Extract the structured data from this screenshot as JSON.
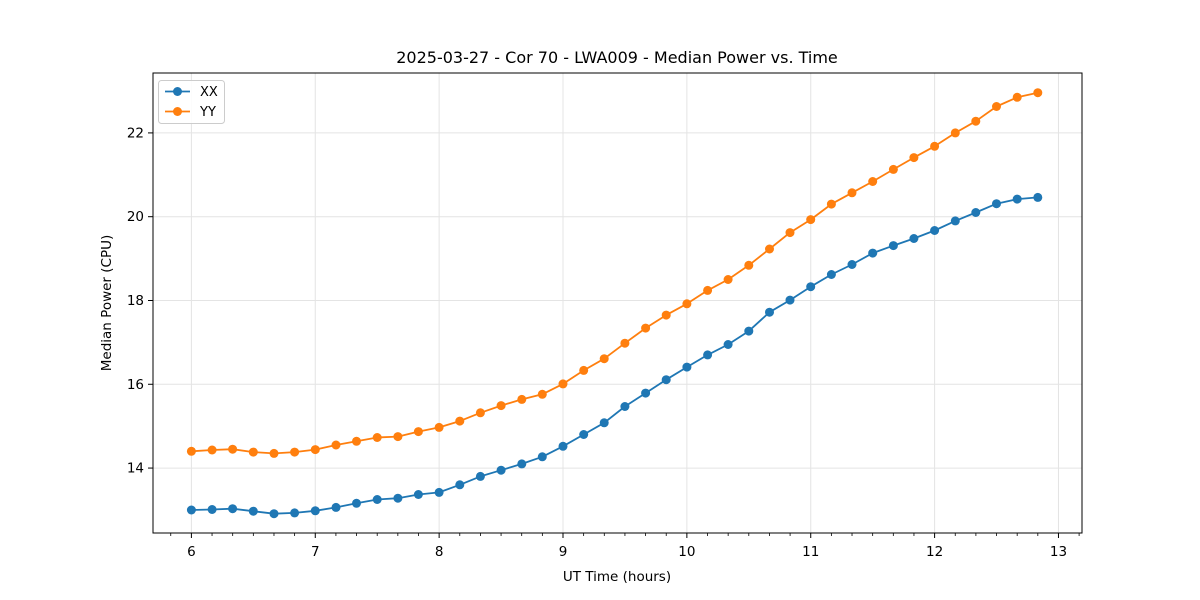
{
  "chart_data": {
    "type": "line",
    "title": "2025-03-27 - Cor 70 - LWA009 - Median Power vs. Time",
    "xlabel": "UT Time (hours)",
    "ylabel": "Median Power (CPU)",
    "xlim": [
      5.69,
      13.19
    ],
    "ylim": [
      12.45,
      23.43
    ],
    "xticks": [
      6,
      7,
      8,
      9,
      10,
      11,
      12,
      13
    ],
    "yticks": [
      14,
      16,
      18,
      20,
      22
    ],
    "minor_tick_step_x": 0.1667,
    "grid": true,
    "background": "#ffffff",
    "grid_color": "#e4e4e4",
    "legend_position": "upper-left",
    "legend_border_color": "#cccccc",
    "x": [
      6.0,
      6.167,
      6.333,
      6.5,
      6.667,
      6.833,
      7.0,
      7.167,
      7.333,
      7.5,
      7.667,
      7.833,
      8.0,
      8.167,
      8.333,
      8.5,
      8.667,
      8.833,
      9.0,
      9.167,
      9.333,
      9.5,
      9.667,
      9.833,
      10.0,
      10.167,
      10.333,
      10.5,
      10.667,
      10.833,
      11.0,
      11.167,
      11.333,
      11.5,
      11.667,
      11.833,
      12.0,
      12.167,
      12.333,
      12.5,
      12.667,
      12.833
    ],
    "series": [
      {
        "name": "XX",
        "color": "#1f77b4",
        "marker": "circle",
        "values": [
          13.0,
          13.01,
          13.03,
          12.97,
          12.91,
          12.93,
          12.98,
          13.06,
          13.16,
          13.25,
          13.28,
          13.37,
          13.42,
          13.6,
          13.8,
          13.95,
          14.1,
          14.27,
          14.52,
          14.8,
          15.08,
          15.47,
          15.79,
          16.11,
          16.41,
          16.7,
          16.95,
          17.27,
          17.72,
          18.01,
          18.33,
          18.62,
          18.86,
          19.13,
          19.31,
          19.48,
          19.67,
          19.9,
          20.1,
          20.31,
          20.42,
          20.46
        ]
      },
      {
        "name": "YY",
        "color": "#ff7f0e",
        "marker": "circle",
        "values": [
          14.4,
          14.43,
          14.45,
          14.38,
          14.35,
          14.38,
          14.44,
          14.55,
          14.64,
          14.73,
          14.75,
          14.87,
          14.97,
          15.12,
          15.32,
          15.49,
          15.64,
          15.76,
          16.01,
          16.33,
          16.61,
          16.98,
          17.34,
          17.65,
          17.92,
          18.24,
          18.5,
          18.84,
          19.23,
          19.62,
          19.93,
          20.3,
          20.57,
          20.84,
          21.13,
          21.41,
          21.68,
          22.0,
          22.28,
          22.63,
          22.85,
          22.96
        ]
      }
    ]
  }
}
